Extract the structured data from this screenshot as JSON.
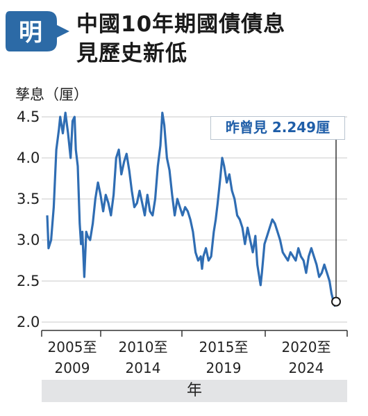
{
  "header": {
    "logo_char": "明",
    "title_line1": "中國10年期國債債息",
    "title_line2": "見歷史新低"
  },
  "colors": {
    "line": "#2f6db3",
    "accent": "#1f5ea8",
    "logo_bg": "#2c6aa6",
    "axis_band": "#e3e4e6"
  },
  "annotation": {
    "text": "昨曾見 2.249厘",
    "value": 2.249
  },
  "chart_data": {
    "type": "line",
    "title": "中國10年期國債債息見歷史新低",
    "ylabel": "孳息（厘）",
    "xlabel": "年",
    "ylim": [
      2.0,
      4.5
    ],
    "xlim": [
      2002.0,
      2024.2
    ],
    "yticks": [
      "4.5",
      "4.0",
      "3.5",
      "3.0",
      "2.5",
      "2.0"
    ],
    "xtick_groups": [
      {
        "line1": "2005至",
        "line2": "2009"
      },
      {
        "line1": "2010至",
        "line2": "2014"
      },
      {
        "line1": "2015至",
        "line2": "2019"
      },
      {
        "line1": "2020至",
        "line2": "2024"
      }
    ],
    "series": [
      {
        "values": [
          [
            2002.0,
            3.3
          ],
          [
            2002.1,
            2.9
          ],
          [
            2002.3,
            3.0
          ],
          [
            2002.5,
            3.4
          ],
          [
            2002.7,
            4.1
          ],
          [
            2002.9,
            4.35
          ],
          [
            2003.0,
            4.5
          ],
          [
            2003.2,
            4.3
          ],
          [
            2003.4,
            4.55
          ],
          [
            2003.6,
            4.3
          ],
          [
            2003.8,
            4.0
          ],
          [
            2003.95,
            4.45
          ],
          [
            2004.1,
            4.5
          ],
          [
            2004.2,
            4.1
          ],
          [
            2004.35,
            3.9
          ],
          [
            2004.5,
            3.2
          ],
          [
            2004.6,
            2.95
          ],
          [
            2004.7,
            3.1
          ],
          [
            2004.85,
            2.55
          ],
          [
            2005.0,
            3.1
          ],
          [
            2005.1,
            3.05
          ],
          [
            2005.3,
            3.0
          ],
          [
            2005.5,
            3.2
          ],
          [
            2005.7,
            3.5
          ],
          [
            2005.9,
            3.7
          ],
          [
            2006.1,
            3.55
          ],
          [
            2006.3,
            3.35
          ],
          [
            2006.5,
            3.55
          ],
          [
            2006.7,
            3.45
          ],
          [
            2006.9,
            3.3
          ],
          [
            2007.1,
            3.55
          ],
          [
            2007.3,
            4.0
          ],
          [
            2007.5,
            4.1
          ],
          [
            2007.7,
            3.8
          ],
          [
            2007.9,
            3.95
          ],
          [
            2008.1,
            4.05
          ],
          [
            2008.3,
            3.85
          ],
          [
            2008.5,
            3.6
          ],
          [
            2008.7,
            3.4
          ],
          [
            2008.9,
            3.45
          ],
          [
            2009.1,
            3.6
          ],
          [
            2009.3,
            3.45
          ],
          [
            2009.5,
            3.3
          ],
          [
            2009.7,
            3.55
          ],
          [
            2009.9,
            3.35
          ],
          [
            2010.1,
            3.3
          ],
          [
            2010.3,
            3.5
          ],
          [
            2010.5,
            3.9
          ],
          [
            2010.7,
            4.15
          ],
          [
            2010.85,
            4.55
          ],
          [
            2011.0,
            4.4
          ],
          [
            2011.2,
            4.0
          ],
          [
            2011.4,
            3.85
          ],
          [
            2011.6,
            3.55
          ],
          [
            2011.8,
            3.3
          ],
          [
            2012.0,
            3.5
          ],
          [
            2012.2,
            3.4
          ],
          [
            2012.4,
            3.3
          ],
          [
            2012.6,
            3.4
          ],
          [
            2012.8,
            3.35
          ],
          [
            2013.0,
            3.25
          ],
          [
            2013.2,
            3.1
          ],
          [
            2013.4,
            2.85
          ],
          [
            2013.6,
            2.75
          ],
          [
            2013.8,
            2.8
          ],
          [
            2013.9,
            2.65
          ],
          [
            2014.0,
            2.8
          ],
          [
            2014.2,
            2.9
          ],
          [
            2014.4,
            2.75
          ],
          [
            2014.6,
            2.8
          ],
          [
            2014.8,
            3.1
          ],
          [
            2014.95,
            3.25
          ],
          [
            2015.1,
            3.45
          ],
          [
            2015.3,
            3.75
          ],
          [
            2015.45,
            4.0
          ],
          [
            2015.6,
            3.9
          ],
          [
            2015.8,
            3.7
          ],
          [
            2016.0,
            3.8
          ],
          [
            2016.2,
            3.6
          ],
          [
            2016.4,
            3.5
          ],
          [
            2016.6,
            3.3
          ],
          [
            2016.8,
            3.25
          ],
          [
            2017.0,
            3.15
          ],
          [
            2017.2,
            2.95
          ],
          [
            2017.4,
            3.15
          ],
          [
            2017.6,
            3.0
          ],
          [
            2017.8,
            2.85
          ],
          [
            2018.0,
            3.05
          ],
          [
            2018.15,
            2.7
          ],
          [
            2018.3,
            2.55
          ],
          [
            2018.4,
            2.45
          ],
          [
            2018.5,
            2.6
          ],
          [
            2018.7,
            2.95
          ],
          [
            2018.9,
            3.05
          ],
          [
            2019.1,
            3.15
          ],
          [
            2019.3,
            3.25
          ],
          [
            2019.5,
            3.2
          ],
          [
            2019.7,
            3.1
          ],
          [
            2019.9,
            3.0
          ],
          [
            2020.1,
            2.85
          ],
          [
            2020.3,
            2.8
          ],
          [
            2020.5,
            2.75
          ],
          [
            2020.7,
            2.85
          ],
          [
            2020.9,
            2.8
          ],
          [
            2021.1,
            2.75
          ],
          [
            2021.3,
            2.9
          ],
          [
            2021.5,
            2.8
          ],
          [
            2021.7,
            2.75
          ],
          [
            2021.9,
            2.6
          ],
          [
            2022.1,
            2.8
          ],
          [
            2022.3,
            2.9
          ],
          [
            2022.5,
            2.8
          ],
          [
            2022.7,
            2.7
          ],
          [
            2022.9,
            2.55
          ],
          [
            2023.1,
            2.6
          ],
          [
            2023.3,
            2.7
          ],
          [
            2023.5,
            2.6
          ],
          [
            2023.7,
            2.5
          ],
          [
            2023.85,
            2.35
          ],
          [
            2024.0,
            2.25
          ],
          [
            2024.1,
            2.2
          ],
          [
            2024.2,
            2.249
          ]
        ]
      }
    ]
  }
}
